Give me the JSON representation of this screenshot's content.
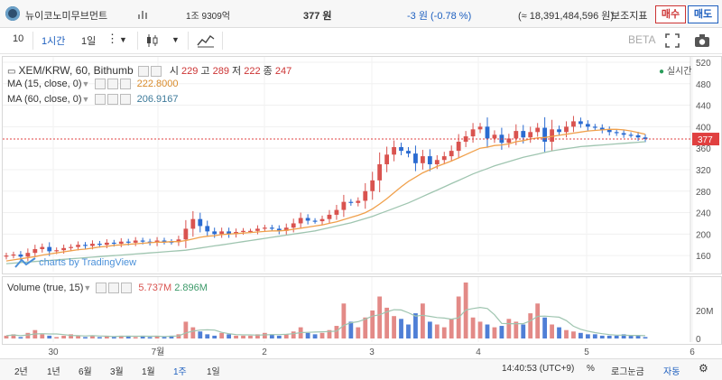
{
  "header": {
    "coin_name": "뉴이코노미무브먼트",
    "volume": "1조 9309억",
    "price": "377 원",
    "change": "-3 원 (-0.78 %)",
    "market_cap": "(≈ 18,391,484,596 원)",
    "indicator_label": "보조지표",
    "buy_label": "매수",
    "sell_label": "매도"
  },
  "toolbar": {
    "count": "10",
    "interval_1h": "1시간",
    "interval_1d": "1일",
    "beta": "BETA"
  },
  "legend": {
    "symbol": "XEM/KRW, 60, Bithumb",
    "open_label": "시",
    "open": "229",
    "high_label": "고",
    "high": "289",
    "low_label": "저",
    "low": "222",
    "close_label": "종",
    "close": "247",
    "realtime": "실시간",
    "ma15_label": "MA (15, close, 0)",
    "ma15_value": "222.8000",
    "ma60_label": "MA (60, close, 0)",
    "ma60_value": "206.9167",
    "volume_label": "Volume (true, 15)",
    "vol_value1": "5.737M",
    "vol_value2": "2.896M",
    "watermark": "charts by TradingView"
  },
  "colors": {
    "up": "#d9534f",
    "down": "#2a6bd1",
    "ma15": "#f0a04b",
    "ma60": "#9fc5b0",
    "price_line": "#e04040"
  },
  "bottom": {
    "ranges": [
      "2년",
      "1년",
      "6월",
      "3월",
      "1월",
      "1주",
      "1일"
    ],
    "time": "14:40:53 (UTC+9)",
    "percent": "%",
    "log": "로그눈금",
    "auto": "자동"
  },
  "chart_data": {
    "type": "candlestick",
    "title": "XEM/KRW, 60, Bithumb",
    "xlabel": "",
    "ylabel": "",
    "x_ticks": [
      "30",
      "7월",
      "2",
      "3",
      "4",
      "5",
      "6"
    ],
    "y_ticks": [
      160,
      200,
      240,
      280,
      320,
      360,
      400,
      440,
      480,
      520
    ],
    "ylim": [
      130,
      530
    ],
    "current_price": 377,
    "volume_ticks": [
      "0",
      "20M"
    ],
    "volume_max": 40,
    "close": [
      160,
      162,
      158,
      165,
      172,
      176,
      168,
      170,
      174,
      176,
      180,
      178,
      182,
      180,
      184,
      182,
      186,
      184,
      188,
      186,
      184,
      188,
      186,
      185,
      190,
      210,
      228,
      215,
      205,
      200,
      205,
      200,
      204,
      206,
      206,
      210,
      212,
      210,
      206,
      212,
      220,
      230,
      225,
      224,
      228,
      236,
      245,
      260,
      258,
      262,
      280,
      300,
      330,
      348,
      362,
      355,
      350,
      332,
      345,
      330,
      338,
      345,
      355,
      372,
      382,
      395,
      400,
      378,
      385,
      370,
      378,
      392,
      380,
      390,
      398,
      372,
      395,
      390,
      400,
      410,
      405,
      400,
      398,
      394,
      390,
      388,
      385,
      384,
      380,
      377
    ],
    "ma15": [
      150,
      152,
      154,
      156,
      158,
      161,
      163,
      165,
      167,
      169,
      171,
      172,
      174,
      176,
      177,
      179,
      180,
      181,
      182,
      183,
      184,
      185,
      185,
      186,
      186,
      188,
      191,
      194,
      196,
      197,
      199,
      200,
      201,
      202,
      203,
      204,
      205,
      206,
      206,
      207,
      209,
      211,
      213,
      215,
      217,
      220,
      223,
      227,
      231,
      235,
      240,
      247,
      256,
      266,
      277,
      288,
      298,
      306,
      314,
      320,
      326,
      331,
      336,
      342,
      348,
      354,
      360,
      362,
      365,
      366,
      368,
      372,
      374,
      377,
      379,
      380,
      382,
      384,
      386,
      388,
      390,
      392,
      393,
      394,
      395,
      395,
      394,
      392,
      389,
      386
    ],
    "ma60": [
      145,
      146,
      147,
      148,
      149,
      150,
      151,
      152,
      153,
      154,
      155,
      156,
      157,
      158,
      159,
      160,
      161,
      162,
      163,
      164,
      165,
      166,
      167,
      168,
      169,
      170,
      172,
      174,
      176,
      178,
      180,
      182,
      184,
      186,
      188,
      190,
      192,
      194,
      196,
      198,
      200,
      202,
      204,
      206,
      209,
      212,
      215,
      218,
      221,
      225,
      229,
      233,
      238,
      243,
      248,
      253,
      258,
      264,
      270,
      276,
      282,
      288,
      294,
      300,
      306,
      312,
      317,
      322,
      327,
      331,
      335,
      339,
      343,
      346,
      349,
      352,
      355,
      357,
      359,
      361,
      363,
      364,
      365,
      366,
      367,
      368,
      369,
      370,
      371,
      372
    ],
    "volume": [
      2,
      3,
      1,
      4,
      6,
      3,
      2,
      1,
      2,
      3,
      2,
      1,
      2,
      1,
      2,
      1,
      2,
      2,
      1,
      2,
      1,
      2,
      1,
      2,
      3,
      12,
      8,
      5,
      3,
      2,
      4,
      3,
      2,
      2,
      2,
      3,
      4,
      3,
      2,
      3,
      5,
      8,
      4,
      3,
      4,
      6,
      9,
      25,
      12,
      8,
      15,
      20,
      30,
      22,
      16,
      14,
      10,
      18,
      25,
      12,
      10,
      8,
      14,
      30,
      40,
      15,
      12,
      10,
      8,
      9,
      14,
      12,
      10,
      18,
      25,
      15,
      10,
      8,
      6,
      5,
      4,
      3,
      3,
      2,
      2,
      2,
      3,
      2,
      2,
      1
    ]
  }
}
